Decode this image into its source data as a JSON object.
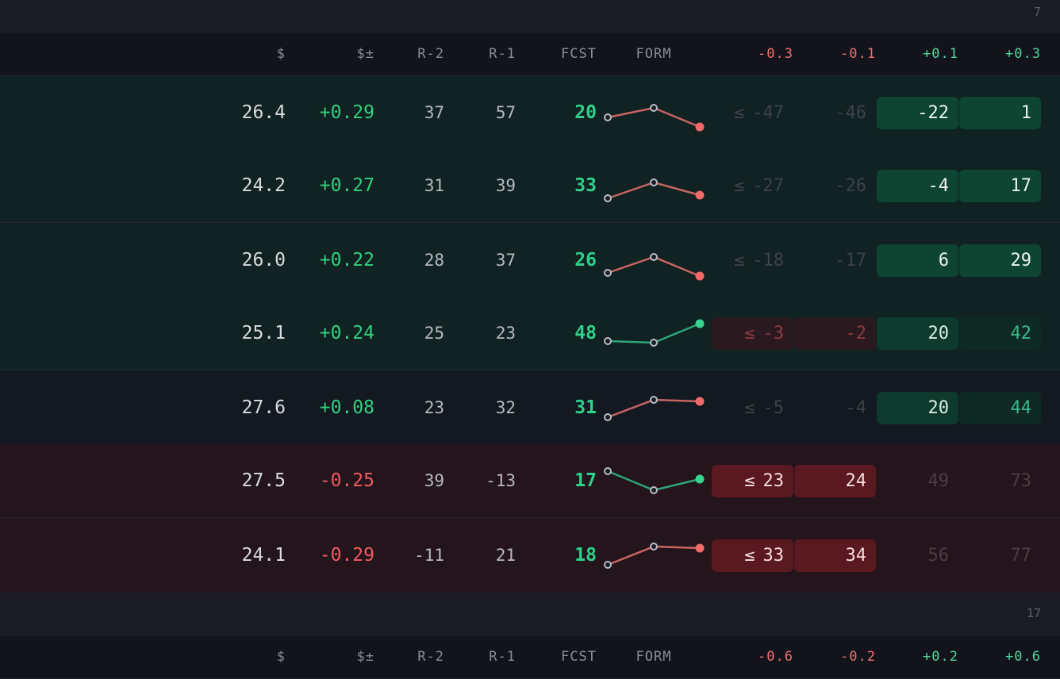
{
  "groups": [
    {
      "count": "7",
      "columns": {
        "price": "$",
        "change": "$±",
        "r2": "R-2",
        "r1": "R-1",
        "fcst": "FCST",
        "form": "FORM",
        "t1": "-0.3",
        "t2": "-0.1",
        "t3": "+0.1",
        "t4": "+0.3"
      },
      "rows": [
        {
          "price": "26.4",
          "change": "+0.29",
          "r2": "37",
          "r1": "57",
          "fcst": "20",
          "form_trend": "down",
          "le": "≤",
          "t1": "-47",
          "t2": "-46",
          "t3": "-22",
          "t4": "1"
        },
        {
          "price": "24.2",
          "change": "+0.27",
          "r2": "31",
          "r1": "39",
          "fcst": "33",
          "form_trend": "down",
          "le": "≤",
          "t1": "-27",
          "t2": "-26",
          "t3": "-4",
          "t4": "17"
        },
        {
          "price": "26.0",
          "change": "+0.22",
          "r2": "28",
          "r1": "37",
          "fcst": "26",
          "form_trend": "down",
          "le": "≤",
          "t1": "-18",
          "t2": "-17",
          "t3": "6",
          "t4": "29"
        },
        {
          "price": "25.1",
          "change": "+0.24",
          "r2": "25",
          "r1": "23",
          "fcst": "48",
          "form_trend": "up",
          "le": "≤",
          "t1": "-3",
          "t2": "-2",
          "t3": "20",
          "t4": "42"
        },
        {
          "price": "27.6",
          "change": "+0.08",
          "r2": "23",
          "r1": "32",
          "fcst": "31",
          "form_trend": "down",
          "le": "≤",
          "t1": "-5",
          "t2": "-4",
          "t3": "20",
          "t4": "44"
        },
        {
          "price": "27.5",
          "change": "-0.25",
          "r2": "39",
          "r1": "-13",
          "fcst": "17",
          "form_trend": "up",
          "le": "≤",
          "t1": "23",
          "t2": "24",
          "t3": "49",
          "t4": "73"
        },
        {
          "price": "24.1",
          "change": "-0.29",
          "r2": "-11",
          "r1": "21",
          "fcst": "18",
          "form_trend": "down",
          "le": "≤",
          "t1": "33",
          "t2": "34",
          "t3": "56",
          "t4": "77"
        }
      ]
    },
    {
      "count": "17",
      "columns": {
        "price": "$",
        "change": "$±",
        "r2": "R-2",
        "r1": "R-1",
        "fcst": "FCST",
        "form": "FORM",
        "t1": "-0.6",
        "t2": "-0.2",
        "t3": "+0.2",
        "t4": "+0.6"
      }
    }
  ],
  "colors": {
    "positive": "#32d17f",
    "negative": "#f05a5f",
    "form_up_line": "#2fa57a",
    "form_down_line": "#c96464",
    "form_up_dot": "#35d58f",
    "form_down_dot": "#f06a6a"
  }
}
